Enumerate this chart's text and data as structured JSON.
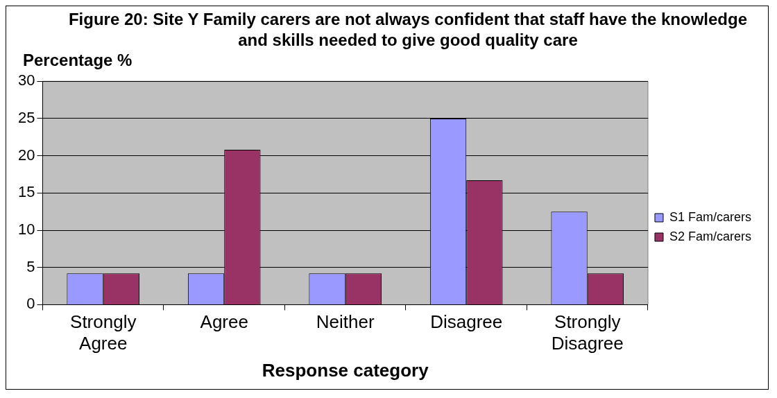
{
  "chart_data": {
    "type": "bar",
    "title": "Figure 20: Site Y Family carers are not always confident that staff have the knowledge and skills needed to give good quality care",
    "ylabel": "Percentage %",
    "xlabel": "Response category",
    "categories": [
      "Strongly Agree",
      "Agree",
      "Neither",
      "Disagree",
      "Strongly Disagree"
    ],
    "series": [
      {
        "name": "S1 Fam/carers",
        "color": "#9999ff",
        "values": [
          4.2,
          4.2,
          4.2,
          25,
          12.5
        ]
      },
      {
        "name": "S2 Fam/carers",
        "color": "#993366",
        "values": [
          4.2,
          20.8,
          4.2,
          16.7,
          4.2
        ]
      }
    ],
    "ylim": [
      0,
      30
    ],
    "yticks": [
      0,
      5,
      10,
      15,
      20,
      25,
      30
    ],
    "grid": "y",
    "legend": "right"
  }
}
